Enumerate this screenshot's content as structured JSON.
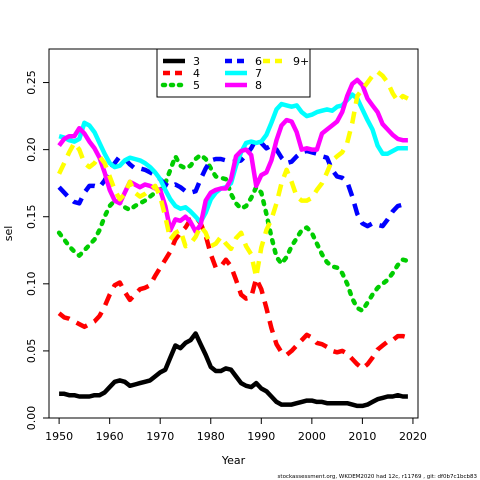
{
  "chart_data": {
    "type": "line",
    "xlabel": "Year",
    "ylabel": "sel",
    "xlim": [
      1948,
      2021
    ],
    "ylim": [
      0,
      0.275
    ],
    "xticks": [
      1950,
      1960,
      1970,
      1980,
      1990,
      2000,
      2010,
      2020
    ],
    "yticks": [
      0.0,
      0.05,
      0.1,
      0.15,
      0.2,
      0.25
    ],
    "ytick_labels": [
      "0.00",
      "0.05",
      "0.10",
      "0.15",
      "0.20",
      "0.25"
    ],
    "legend_position": "top-center",
    "footnote": "stockassessment.org, WKDEM2020 had 12c, r11769 , git: df0b7c1bcb83",
    "series": [
      {
        "name": "3",
        "color": "#000000",
        "dash": "solid",
        "x": [
          1950,
          1951,
          1952,
          1953,
          1954,
          1955,
          1956,
          1957,
          1958,
          1959,
          1960,
          1961,
          1962,
          1963,
          1964,
          1965,
          1966,
          1967,
          1968,
          1969,
          1970,
          1971,
          1972,
          1973,
          1974,
          1975,
          1976,
          1977,
          1978,
          1979,
          1980,
          1981,
          1982,
          1983,
          1984,
          1985,
          1986,
          1987,
          1988,
          1989,
          1990,
          1991,
          1992,
          1993,
          1994,
          1995,
          1996,
          1997,
          1998,
          1999,
          2000,
          2001,
          2002,
          2003,
          2004,
          2005,
          2006,
          2007,
          2008,
          2009,
          2010,
          2011,
          2012,
          2013,
          2014,
          2015,
          2016,
          2017,
          2018,
          2019
        ],
        "y": [
          0.018,
          0.018,
          0.017,
          0.017,
          0.016,
          0.016,
          0.016,
          0.017,
          0.017,
          0.019,
          0.023,
          0.027,
          0.028,
          0.027,
          0.024,
          0.025,
          0.026,
          0.027,
          0.028,
          0.031,
          0.034,
          0.036,
          0.045,
          0.054,
          0.052,
          0.056,
          0.058,
          0.063,
          0.055,
          0.047,
          0.038,
          0.035,
          0.035,
          0.037,
          0.036,
          0.031,
          0.026,
          0.024,
          0.023,
          0.026,
          0.022,
          0.02,
          0.016,
          0.012,
          0.01,
          0.01,
          0.01,
          0.011,
          0.012,
          0.013,
          0.013,
          0.012,
          0.012,
          0.011,
          0.011,
          0.011,
          0.011,
          0.011,
          0.01,
          0.009,
          0.009,
          0.01,
          0.012,
          0.014,
          0.015,
          0.016,
          0.016,
          0.017,
          0.016,
          0.016
        ]
      },
      {
        "name": "4",
        "color": "#ff0000",
        "dash": "dashed",
        "x": [
          1950,
          1951,
          1952,
          1953,
          1954,
          1955,
          1956,
          1957,
          1958,
          1959,
          1960,
          1961,
          1962,
          1963,
          1964,
          1965,
          1966,
          1967,
          1968,
          1969,
          1970,
          1971,
          1972,
          1973,
          1974,
          1975,
          1976,
          1977,
          1978,
          1979,
          1980,
          1981,
          1982,
          1983,
          1984,
          1985,
          1986,
          1987,
          1988,
          1989,
          1990,
          1991,
          1992,
          1993,
          1994,
          1995,
          1996,
          1997,
          1998,
          1999,
          2000,
          2001,
          2002,
          2003,
          2004,
          2005,
          2006,
          2007,
          2008,
          2009,
          2010,
          2011,
          2012,
          2013,
          2014,
          2015,
          2016,
          2017,
          2018,
          2019
        ],
        "y": [
          0.078,
          0.075,
          0.074,
          0.072,
          0.07,
          0.068,
          0.07,
          0.072,
          0.076,
          0.083,
          0.092,
          0.099,
          0.101,
          0.094,
          0.088,
          0.092,
          0.096,
          0.097,
          0.099,
          0.106,
          0.112,
          0.118,
          0.124,
          0.133,
          0.138,
          0.142,
          0.148,
          0.15,
          0.145,
          0.136,
          0.122,
          0.112,
          0.113,
          0.118,
          0.113,
          0.103,
          0.092,
          0.089,
          0.09,
          0.104,
          0.096,
          0.082,
          0.067,
          0.055,
          0.049,
          0.047,
          0.05,
          0.054,
          0.058,
          0.062,
          0.06,
          0.056,
          0.055,
          0.053,
          0.05,
          0.049,
          0.05,
          0.048,
          0.044,
          0.04,
          0.037,
          0.04,
          0.045,
          0.051,
          0.054,
          0.057,
          0.058,
          0.061,
          0.061,
          0.06
        ]
      },
      {
        "name": "5",
        "color": "#00cd00",
        "dash": "dotted",
        "x": [
          1950,
          1951,
          1952,
          1953,
          1954,
          1955,
          1956,
          1957,
          1958,
          1959,
          1960,
          1961,
          1962,
          1963,
          1964,
          1965,
          1966,
          1967,
          1968,
          1969,
          1970,
          1971,
          1972,
          1973,
          1974,
          1975,
          1976,
          1977,
          1978,
          1979,
          1980,
          1981,
          1982,
          1983,
          1984,
          1985,
          1986,
          1987,
          1988,
          1989,
          1990,
          1991,
          1992,
          1993,
          1994,
          1995,
          1996,
          1997,
          1998,
          1999,
          2000,
          2001,
          2002,
          2003,
          2004,
          2005,
          2006,
          2007,
          2008,
          2009,
          2010,
          2011,
          2012,
          2013,
          2014,
          2015,
          2016,
          2017,
          2018,
          2019
        ],
        "y": [
          0.138,
          0.133,
          0.128,
          0.124,
          0.121,
          0.125,
          0.129,
          0.133,
          0.14,
          0.15,
          0.158,
          0.162,
          0.161,
          0.157,
          0.155,
          0.158,
          0.16,
          0.162,
          0.165,
          0.168,
          0.17,
          0.175,
          0.185,
          0.195,
          0.188,
          0.186,
          0.188,
          0.193,
          0.196,
          0.193,
          0.186,
          0.18,
          0.179,
          0.178,
          0.167,
          0.16,
          0.156,
          0.158,
          0.164,
          0.172,
          0.168,
          0.152,
          0.135,
          0.12,
          0.115,
          0.12,
          0.128,
          0.134,
          0.14,
          0.142,
          0.138,
          0.13,
          0.122,
          0.116,
          0.113,
          0.112,
          0.108,
          0.1,
          0.089,
          0.082,
          0.08,
          0.086,
          0.092,
          0.097,
          0.1,
          0.103,
          0.108,
          0.114,
          0.118,
          0.117
        ]
      },
      {
        "name": "6",
        "color": "#0000ff",
        "dash": "dashed",
        "x": [
          1950,
          1951,
          1952,
          1953,
          1954,
          1955,
          1956,
          1957,
          1958,
          1959,
          1960,
          1961,
          1962,
          1963,
          1964,
          1965,
          1966,
          1967,
          1968,
          1969,
          1970,
          1971,
          1972,
          1973,
          1974,
          1975,
          1976,
          1977,
          1978,
          1979,
          1980,
          1981,
          1982,
          1983,
          1984,
          1985,
          1986,
          1987,
          1988,
          1989,
          1990,
          1991,
          1992,
          1993,
          1994,
          1995,
          1996,
          1997,
          1998,
          1999,
          2000,
          2001,
          2002,
          2003,
          2004,
          2005,
          2006,
          2007,
          2008,
          2009,
          2010,
          2011,
          2012,
          2013,
          2014,
          2015,
          2016,
          2017,
          2018,
          2019
        ],
        "y": [
          0.172,
          0.168,
          0.164,
          0.161,
          0.16,
          0.168,
          0.173,
          0.173,
          0.172,
          0.177,
          0.184,
          0.19,
          0.195,
          0.193,
          0.189,
          0.186,
          0.186,
          0.185,
          0.183,
          0.181,
          0.178,
          0.174,
          0.172,
          0.174,
          0.172,
          0.169,
          0.168,
          0.169,
          0.178,
          0.186,
          0.192,
          0.193,
          0.193,
          0.192,
          0.191,
          0.191,
          0.192,
          0.196,
          0.201,
          0.208,
          0.205,
          0.201,
          0.203,
          0.2,
          0.194,
          0.19,
          0.191,
          0.195,
          0.198,
          0.199,
          0.198,
          0.197,
          0.195,
          0.194,
          0.185,
          0.18,
          0.179,
          0.176,
          0.165,
          0.152,
          0.145,
          0.143,
          0.145,
          0.144,
          0.143,
          0.148,
          0.154,
          0.158,
          0.159,
          0.159
        ]
      },
      {
        "name": "7",
        "color": "#00ffff",
        "dash": "solid",
        "x": [
          1950,
          1951,
          1952,
          1953,
          1954,
          1955,
          1956,
          1957,
          1958,
          1959,
          1960,
          1961,
          1962,
          1963,
          1964,
          1965,
          1966,
          1967,
          1968,
          1969,
          1970,
          1971,
          1972,
          1973,
          1974,
          1975,
          1976,
          1977,
          1978,
          1979,
          1980,
          1981,
          1982,
          1983,
          1984,
          1985,
          1986,
          1987,
          1988,
          1989,
          1990,
          1991,
          1992,
          1993,
          1994,
          1995,
          1996,
          1997,
          1998,
          1999,
          2000,
          2001,
          2002,
          2003,
          2004,
          2005,
          2006,
          2007,
          2008,
          2009,
          2010,
          2011,
          2012,
          2013,
          2014,
          2015,
          2016,
          2017,
          2018,
          2019
        ],
        "y": [
          0.21,
          0.209,
          0.207,
          0.206,
          0.208,
          0.22,
          0.218,
          0.213,
          0.205,
          0.197,
          0.19,
          0.187,
          0.188,
          0.192,
          0.194,
          0.193,
          0.192,
          0.19,
          0.187,
          0.183,
          0.178,
          0.17,
          0.163,
          0.158,
          0.156,
          0.157,
          0.154,
          0.15,
          0.146,
          0.153,
          0.163,
          0.168,
          0.171,
          0.172,
          0.175,
          0.188,
          0.198,
          0.205,
          0.206,
          0.205,
          0.206,
          0.211,
          0.22,
          0.23,
          0.234,
          0.233,
          0.232,
          0.233,
          0.228,
          0.225,
          0.226,
          0.228,
          0.229,
          0.23,
          0.229,
          0.232,
          0.233,
          0.237,
          0.241,
          0.238,
          0.23,
          0.222,
          0.215,
          0.203,
          0.197,
          0.197,
          0.199,
          0.201,
          0.201,
          0.201
        ]
      },
      {
        "name": "8",
        "color": "#ff00ff",
        "dash": "solid",
        "x": [
          1950,
          1951,
          1952,
          1953,
          1954,
          1955,
          1956,
          1957,
          1958,
          1959,
          1960,
          1961,
          1962,
          1963,
          1964,
          1965,
          1966,
          1967,
          1968,
          1969,
          1970,
          1971,
          1972,
          1973,
          1974,
          1975,
          1976,
          1977,
          1978,
          1979,
          1980,
          1981,
          1982,
          1983,
          1984,
          1985,
          1986,
          1987,
          1988,
          1989,
          1990,
          1991,
          1992,
          1993,
          1994,
          1995,
          1996,
          1997,
          1998,
          1999,
          2000,
          2001,
          2002,
          2003,
          2004,
          2005,
          2006,
          2007,
          2008,
          2009,
          2010,
          2011,
          2012,
          2013,
          2014,
          2015,
          2016,
          2017,
          2018,
          2019
        ],
        "y": [
          0.203,
          0.208,
          0.21,
          0.21,
          0.216,
          0.212,
          0.206,
          0.201,
          0.194,
          0.183,
          0.17,
          0.162,
          0.16,
          0.168,
          0.176,
          0.174,
          0.172,
          0.174,
          0.173,
          0.171,
          0.17,
          0.158,
          0.14,
          0.148,
          0.147,
          0.15,
          0.146,
          0.139,
          0.144,
          0.162,
          0.168,
          0.17,
          0.171,
          0.171,
          0.178,
          0.195,
          0.199,
          0.2,
          0.196,
          0.173,
          0.181,
          0.183,
          0.192,
          0.207,
          0.218,
          0.222,
          0.221,
          0.213,
          0.2,
          0.201,
          0.2,
          0.2,
          0.212,
          0.215,
          0.218,
          0.221,
          0.228,
          0.24,
          0.249,
          0.252,
          0.248,
          0.238,
          0.233,
          0.228,
          0.219,
          0.215,
          0.211,
          0.208,
          0.207,
          0.207
        ]
      },
      {
        "name": "9+",
        "color": "#ffff00",
        "dash": "dashed",
        "x": [
          1950,
          1951,
          1952,
          1953,
          1954,
          1955,
          1956,
          1957,
          1958,
          1959,
          1960,
          1961,
          1962,
          1963,
          1964,
          1965,
          1966,
          1967,
          1968,
          1969,
          1970,
          1971,
          1972,
          1973,
          1974,
          1975,
          1976,
          1977,
          1978,
          1979,
          1980,
          1981,
          1982,
          1983,
          1984,
          1985,
          1986,
          1987,
          1988,
          1989,
          1990,
          1991,
          1992,
          1993,
          1994,
          1995,
          1996,
          1997,
          1998,
          1999,
          2000,
          2001,
          2002,
          2003,
          2004,
          2005,
          2006,
          2007,
          2008,
          2009,
          2010,
          2011,
          2012,
          2013,
          2014,
          2015,
          2016,
          2017,
          2018,
          2019
        ],
        "y": [
          0.182,
          0.19,
          0.198,
          0.205,
          0.2,
          0.19,
          0.187,
          0.19,
          0.195,
          0.19,
          0.18,
          0.17,
          0.163,
          0.167,
          0.176,
          0.168,
          0.165,
          0.167,
          0.17,
          0.173,
          0.165,
          0.15,
          0.133,
          0.138,
          0.14,
          0.128,
          0.13,
          0.135,
          0.143,
          0.138,
          0.128,
          0.13,
          0.135,
          0.13,
          0.126,
          0.134,
          0.138,
          0.128,
          0.122,
          0.105,
          0.127,
          0.14,
          0.148,
          0.16,
          0.175,
          0.185,
          0.176,
          0.165,
          0.162,
          0.162,
          0.164,
          0.17,
          0.175,
          0.183,
          0.192,
          0.195,
          0.198,
          0.205,
          0.22,
          0.24,
          0.245,
          0.25,
          0.255,
          0.258,
          0.255,
          0.25,
          0.242,
          0.236,
          0.24,
          0.238
        ]
      }
    ]
  }
}
